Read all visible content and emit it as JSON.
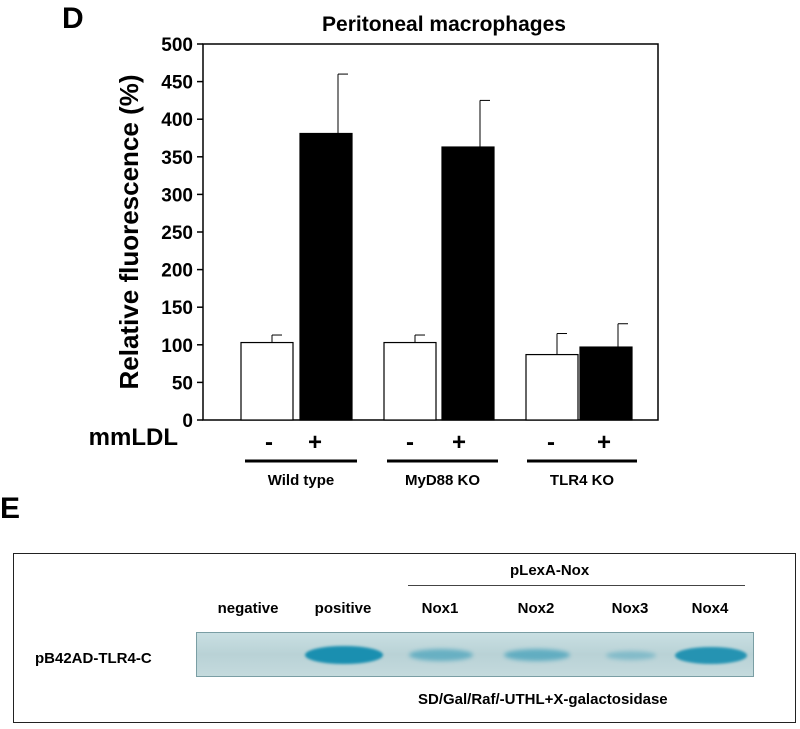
{
  "panel_d": {
    "letter": "D",
    "treatment_label": "mmLDL",
    "treatment_signs": [
      "-",
      "+",
      "-",
      "+",
      "-",
      "+"
    ],
    "groups": [
      "Wild type",
      "MyD88 KO",
      "TLR4 KO"
    ]
  },
  "chart_data": {
    "type": "bar",
    "title": "Peritoneal macrophages",
    "ylabel": "Relative fluorescence (%)",
    "xlabel": "",
    "ylim": [
      0,
      500
    ],
    "yticks": [
      "0",
      "50",
      "100",
      "150",
      "200",
      "250",
      "300",
      "350",
      "400",
      "450",
      "500"
    ],
    "categories": [
      "Wild type -",
      "Wild type +",
      "MyD88 KO -",
      "MyD88 KO +",
      "TLR4 KO -",
      "TLR4 KO +"
    ],
    "values": [
      103,
      381,
      103,
      363,
      87,
      97
    ],
    "errors": [
      10,
      79,
      10,
      62,
      28,
      31
    ],
    "bar_colors": [
      "#ffffff",
      "#000000",
      "#ffffff",
      "#000000",
      "#ffffff",
      "#000000"
    ],
    "grid": false,
    "legend": "none"
  },
  "panel_e": {
    "letter": "E",
    "group_header": "pLexA-Nox",
    "column_labels": [
      "negative",
      "positive",
      "Nox1",
      "Nox2",
      "Nox3",
      "Nox4"
    ],
    "row_label": "pB42AD-TLR4-C",
    "medium_label": "SD/Gal/Raf/-UTHL+X-galactosidase",
    "band_intensity": [
      0.0,
      1.0,
      0.35,
      0.4,
      0.12,
      0.9
    ],
    "band_color": "#1a8fb0"
  }
}
